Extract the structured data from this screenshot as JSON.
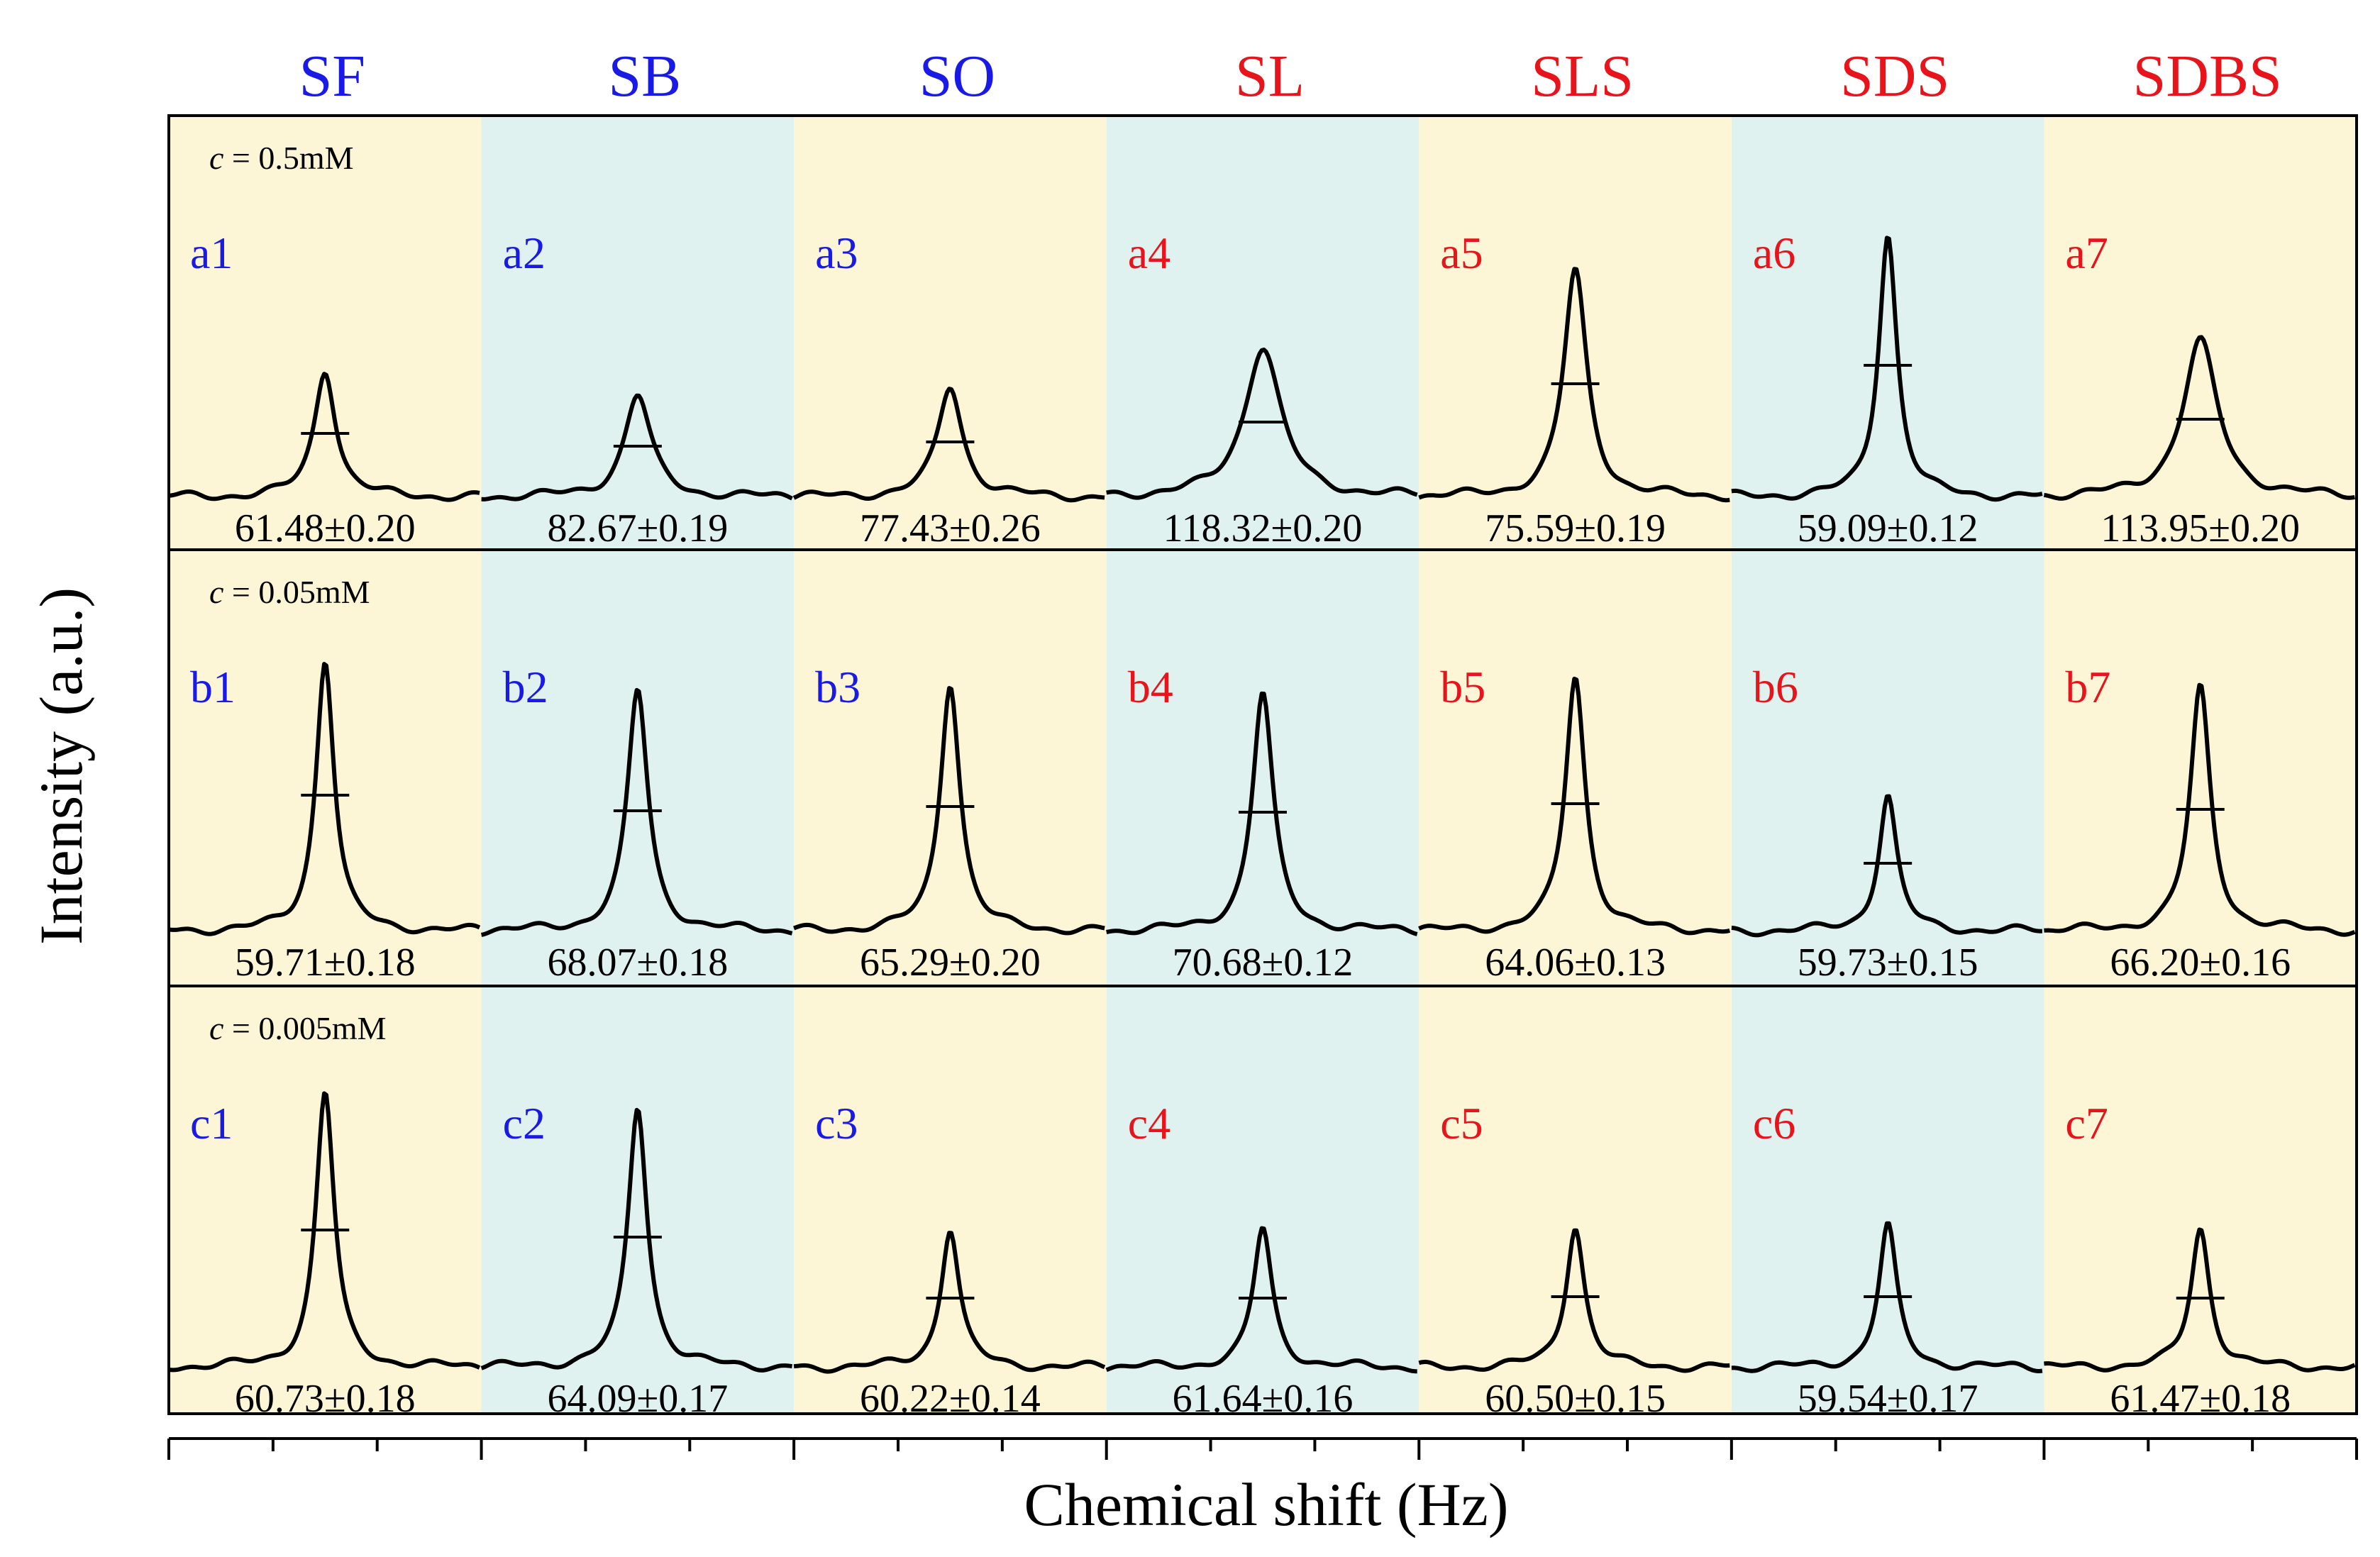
{
  "colors": {
    "bg_yellow": "#FCF6D6",
    "bg_cyan": "#E0F2EF",
    "blue": "#1A1AE6",
    "red": "#E8141C",
    "ink": "#000000"
  },
  "chart_data": {
    "type": "line",
    "title": "",
    "xlabel": "Chemical shift (Hz)",
    "ylabel": "Intensity (a.u.)",
    "x_tick_count": 22,
    "y_tick_labels": "none",
    "grid": false,
    "legend": "none",
    "columns": [
      {
        "name": "SF",
        "color": "blue",
        "background": "yellow"
      },
      {
        "name": "SB",
        "color": "blue",
        "background": "cyan"
      },
      {
        "name": "SO",
        "color": "blue",
        "background": "yellow"
      },
      {
        "name": "SL",
        "color": "red",
        "background": "cyan"
      },
      {
        "name": "SLS",
        "color": "red",
        "background": "yellow"
      },
      {
        "name": "SDS",
        "color": "red",
        "background": "cyan"
      },
      {
        "name": "SDBS",
        "color": "red",
        "background": "yellow"
      }
    ],
    "rows": [
      {
        "concentration_label": "c = 0.5mM",
        "concentration_symbol": "c",
        "concentration_value": " = 0.5mM",
        "panels": [
          {
            "label": "a1",
            "linewidth": "61.48±0.20",
            "peak_height": 0.45,
            "width": 0.65
          },
          {
            "label": "a2",
            "linewidth": "82.67±0.19",
            "peak_height": 0.36,
            "width": 0.8
          },
          {
            "label": "a3",
            "linewidth": "77.43±0.26",
            "peak_height": 0.39,
            "width": 0.75
          },
          {
            "label": "a4",
            "linewidth": "118.32±0.20",
            "peak_height": 0.53,
            "width": 1.1
          },
          {
            "label": "a5",
            "linewidth": "75.59±0.19",
            "peak_height": 0.8,
            "width": 0.7
          },
          {
            "label": "a6",
            "linewidth": "59.09±0.12",
            "peak_height": 0.93,
            "width": 0.55
          },
          {
            "label": "a7",
            "linewidth": "113.95±0.20",
            "peak_height": 0.55,
            "width": 1.05
          }
        ]
      },
      {
        "concentration_label": "c = 0.05mM",
        "concentration_symbol": "c",
        "concentration_value": " = 0.05mM",
        "panels": [
          {
            "label": "b1",
            "linewidth": "59.71±0.18",
            "peak_height": 0.96,
            "width": 0.55
          },
          {
            "label": "b2",
            "linewidth": "68.07±0.18",
            "peak_height": 0.85,
            "width": 0.62
          },
          {
            "label": "b3",
            "linewidth": "65.29±0.20",
            "peak_height": 0.88,
            "width": 0.6
          },
          {
            "label": "b4",
            "linewidth": "70.68±0.12",
            "peak_height": 0.84,
            "width": 0.63
          },
          {
            "label": "b5",
            "linewidth": "64.06±0.13",
            "peak_height": 0.9,
            "width": 0.6
          },
          {
            "label": "b6",
            "linewidth": "59.73±0.15",
            "peak_height": 0.48,
            "width": 0.55
          },
          {
            "label": "b7",
            "linewidth": "66.20±0.16",
            "peak_height": 0.86,
            "width": 0.61
          }
        ]
      },
      {
        "concentration_label": "c = 0.005mM",
        "concentration_symbol": "c",
        "concentration_value": " = 0.005mM",
        "panels": [
          {
            "label": "c1",
            "linewidth": "60.73±0.18",
            "peak_height": 0.97,
            "width": 0.56
          },
          {
            "label": "c2",
            "linewidth": "64.09±0.17",
            "peak_height": 0.92,
            "width": 0.58
          },
          {
            "label": "c3",
            "linewidth": "60.22±0.14",
            "peak_height": 0.49,
            "width": 0.56
          },
          {
            "label": "c4",
            "linewidth": "61.64±0.16",
            "peak_height": 0.49,
            "width": 0.57
          },
          {
            "label": "c5",
            "linewidth": "60.50±0.15",
            "peak_height": 0.5,
            "width": 0.56
          },
          {
            "label": "c6",
            "linewidth": "59.54±0.17",
            "peak_height": 0.5,
            "width": 0.55
          },
          {
            "label": "c7",
            "linewidth": "61.47±0.18",
            "peak_height": 0.49,
            "width": 0.57
          }
        ]
      }
    ]
  }
}
